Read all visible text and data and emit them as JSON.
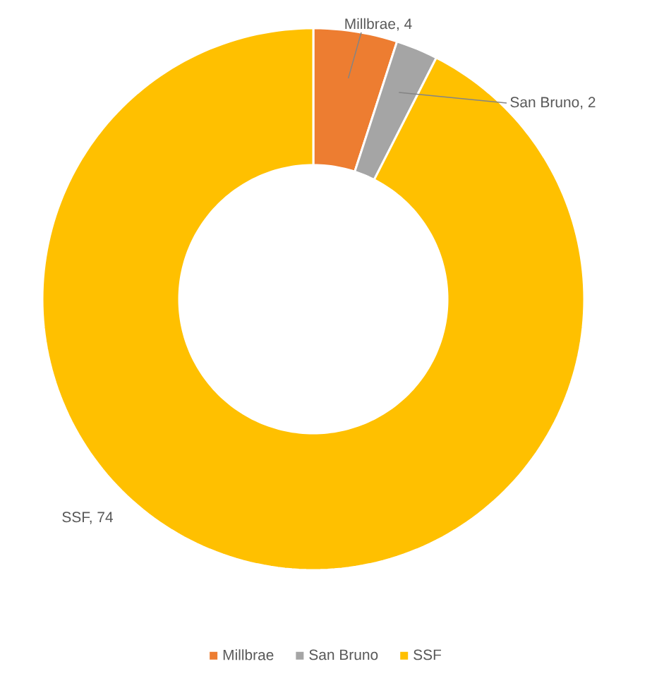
{
  "chart_data": {
    "type": "donut",
    "categories": [
      "Millbrae",
      "San Bruno",
      "SSF"
    ],
    "values": [
      4,
      2,
      74
    ],
    "colors": [
      "#ed7d31",
      "#a5a5a5",
      "#ffc000"
    ],
    "value_labels": [
      "Millbrae, 4",
      "San Bruno, 2",
      "SSF, 74"
    ],
    "legend": "bottom"
  }
}
